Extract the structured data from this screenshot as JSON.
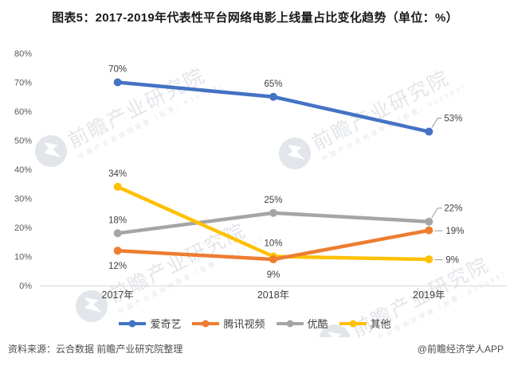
{
  "title": "图表5：2017-2019年代表性平台网络电影上线量占比变化趋势（单位：%）",
  "chart_data": {
    "type": "line",
    "categories": [
      "2017年",
      "2018年",
      "2019年"
    ],
    "series": [
      {
        "name": "爱奇艺",
        "slug": "iqiyi",
        "color": "#4472C4",
        "values": [
          70,
          65,
          53
        ],
        "label_modes": [
          "above",
          "above",
          "right-up"
        ]
      },
      {
        "name": "腾讯视频",
        "slug": "tencent-video",
        "color": "#ED7D31",
        "values": [
          12,
          9,
          19
        ],
        "label_modes": [
          "below",
          "below",
          "right"
        ]
      },
      {
        "name": "优酷",
        "slug": "youku",
        "color": "#A5A5A5",
        "values": [
          18,
          25,
          22
        ],
        "label_modes": [
          "above",
          "above",
          "right-up"
        ]
      },
      {
        "name": "其他",
        "slug": "others",
        "color": "#FFC000",
        "values": [
          34,
          10,
          9
        ],
        "label_modes": [
          "above",
          "above",
          "right"
        ]
      }
    ],
    "ylim": [
      0,
      80
    ],
    "ytick_step": 10,
    "tick_suffix": "%",
    "label_suffix": "%",
    "grid": false,
    "legend_position": "bottom",
    "z_order": [
      0,
      2,
      3,
      1
    ],
    "axis_color": "#D9D9D9",
    "leader_color": "#999999"
  },
  "watermark": {
    "main": "前瞻产业研究院",
    "sub": "中国产业咨询领导者（股票：839599）"
  },
  "footer": {
    "source": "资料来源：云合数据 前瞻产业研究院整理",
    "credit": "@前瞻经济学人APP"
  }
}
